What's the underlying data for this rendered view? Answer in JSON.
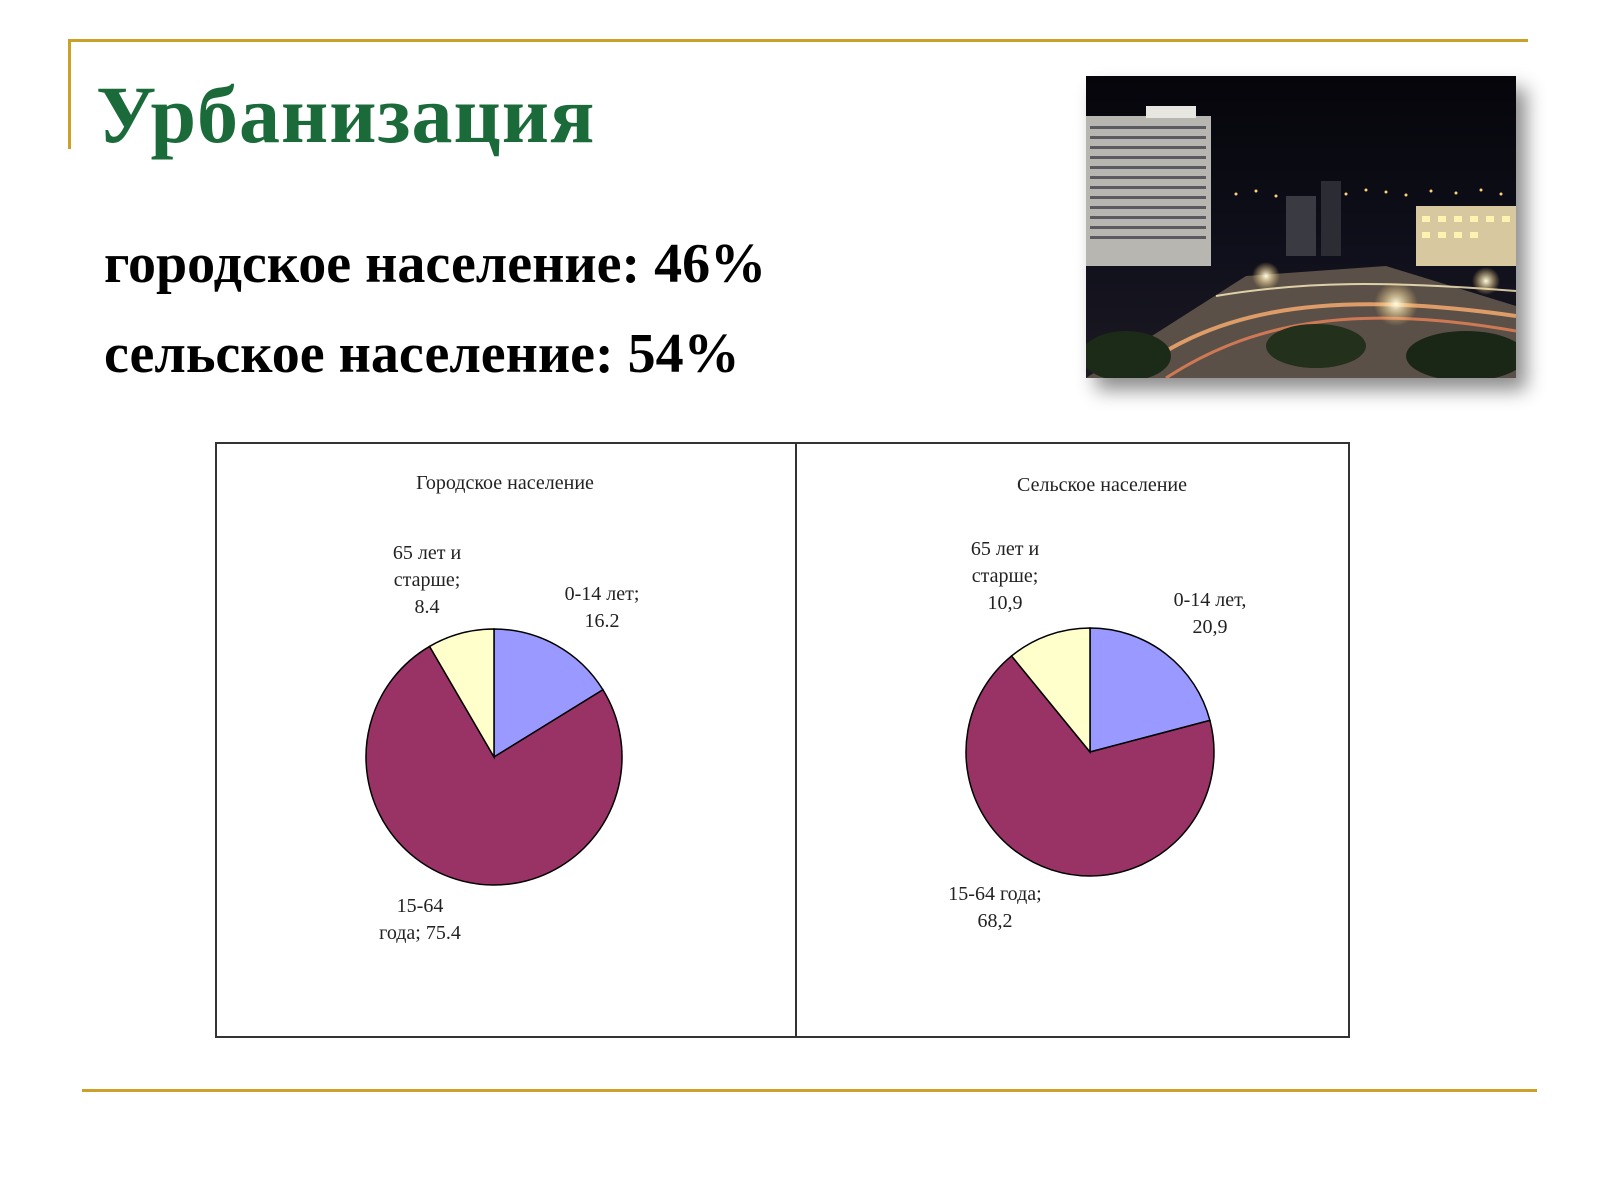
{
  "slide": {
    "title": "Урбанизация",
    "urban_stat": "городское население: 46%",
    "rural_stat": "сельское население: 54%"
  },
  "photo": {
    "subject": "night-city-photo"
  },
  "colors": {
    "title": "#1b6b3a",
    "rule": "#c9a227",
    "slice_0_14": "#9999ff",
    "slice_15_64": "#993366",
    "slice_65_plus": "#ffffcc"
  },
  "chart_data": [
    {
      "type": "pie",
      "title": "Городское население",
      "slices": [
        {
          "label_lines": [
            "0-14 лет;",
            "16.2"
          ],
          "value": 16.2,
          "color": "#9999ff"
        },
        {
          "label_lines": [
            "15-64",
            "года; 75.4"
          ],
          "value": 75.4,
          "color": "#993366"
        },
        {
          "label_lines": [
            "65 лет и",
            "старше;",
            "8.4"
          ],
          "value": 8.4,
          "color": "#ffffcc"
        }
      ]
    },
    {
      "type": "pie",
      "title": "Сельское население",
      "slices": [
        {
          "label_lines": [
            "0-14 лет,",
            "20,9"
          ],
          "value": 20.9,
          "color": "#9999ff"
        },
        {
          "label_lines": [
            "15-64 года;",
            "68,2"
          ],
          "value": 68.2,
          "color": "#993366"
        },
        {
          "label_lines": [
            "65 лет и",
            "старше;",
            "10,9"
          ],
          "value": 10.9,
          "color": "#ffffcc"
        }
      ]
    }
  ]
}
